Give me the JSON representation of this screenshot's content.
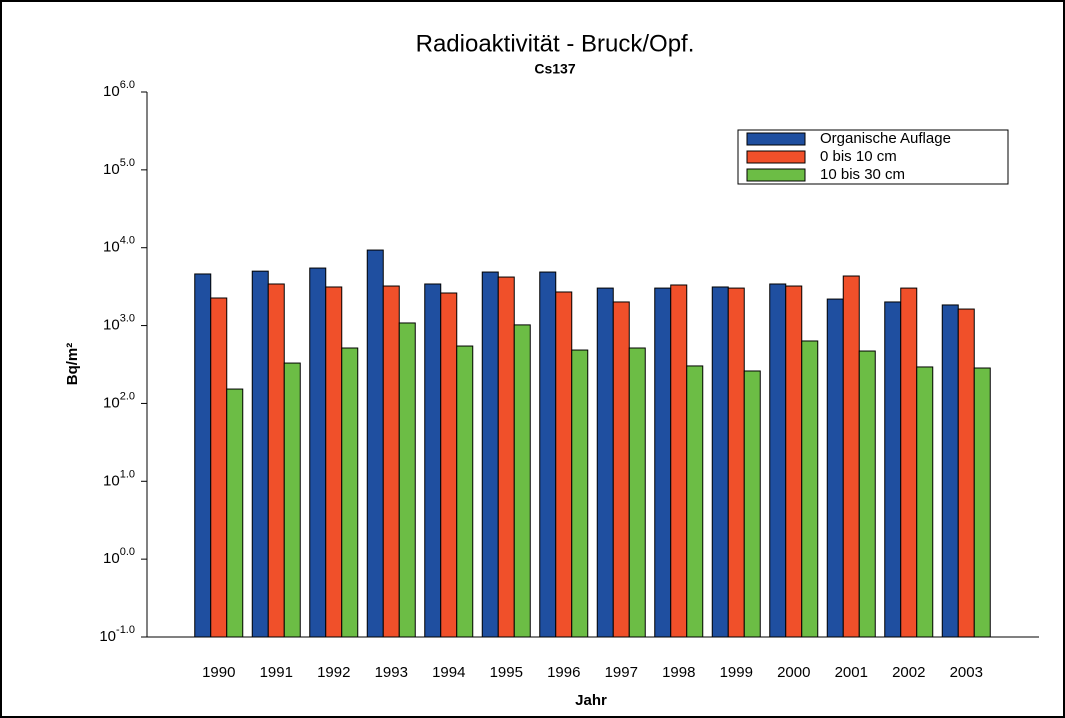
{
  "chart_data": {
    "type": "bar",
    "title": "Radioaktivität - Bruck/Opf.",
    "subtitle": "Cs137",
    "x_label": "Jahr",
    "y_label": "Bq/m²",
    "log_y": true,
    "legend": "upper right",
    "categories": [
      "1990",
      "1991",
      "1992",
      "1993",
      "1994",
      "1995",
      "1996",
      "1997",
      "1998",
      "1999",
      "2000",
      "2001",
      "2002",
      "2003"
    ],
    "series": [
      {
        "name": "Organische Auflage",
        "color": "#1f4fa0",
        "values": [
          4600,
          5000,
          5480,
          9330,
          3420,
          4870,
          4870,
          3030,
          3030,
          3130,
          3420,
          2190,
          2010,
          1840
        ]
      },
      {
        "name": "0 bis 10 cm",
        "color": "#f0502a",
        "values": [
          2260,
          3420,
          3130,
          3220,
          2620,
          4200,
          2700,
          2010,
          3320,
          3030,
          3220,
          4330,
          3030,
          1630
        ]
      },
      {
        "name": "10 bis 30 cm",
        "color": "#6cbd45",
        "values": [
          153,
          330,
          515,
          1080,
          546,
          1020,
          485,
          515,
          303,
          261,
          634,
          471,
          294,
          285
        ]
      }
    ],
    "ylim": [
      0.1,
      1000000
    ],
    "yticks": [
      {
        "value": 0.1,
        "label": "10",
        "exponent": "-1.0"
      },
      {
        "value": 1,
        "label": "10",
        "exponent": "0.0"
      },
      {
        "value": 10,
        "label": "10",
        "exponent": "1.0"
      },
      {
        "value": 100,
        "label": "10",
        "exponent": "2.0"
      },
      {
        "value": 1000,
        "label": "10",
        "exponent": "3.0"
      },
      {
        "value": 10000,
        "label": "10",
        "exponent": "4.0"
      },
      {
        "value": 100000,
        "label": "10",
        "exponent": "5.0"
      },
      {
        "value": 1000000,
        "label": "10",
        "exponent": "6.0"
      }
    ]
  }
}
